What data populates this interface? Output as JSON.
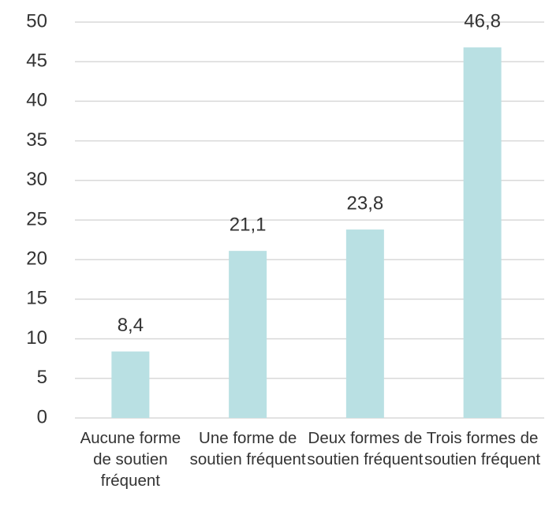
{
  "chart_data": {
    "type": "bar",
    "categories": [
      "Aucune forme de soutien fréquent",
      "Une forme de soutien fréquent",
      "Deux formes de soutien fréquent",
      "Trois formes de soutien fréquent"
    ],
    "values": [
      8.4,
      21.1,
      23.8,
      46.8
    ],
    "value_labels": [
      "8,4",
      "21,1",
      "23,8",
      "46,8"
    ],
    "color": "#b9e0e3",
    "ylim": [
      0,
      50
    ],
    "yticks": [
      0,
      5,
      10,
      15,
      20,
      25,
      30,
      35,
      40,
      45,
      50
    ],
    "grid": true
  }
}
